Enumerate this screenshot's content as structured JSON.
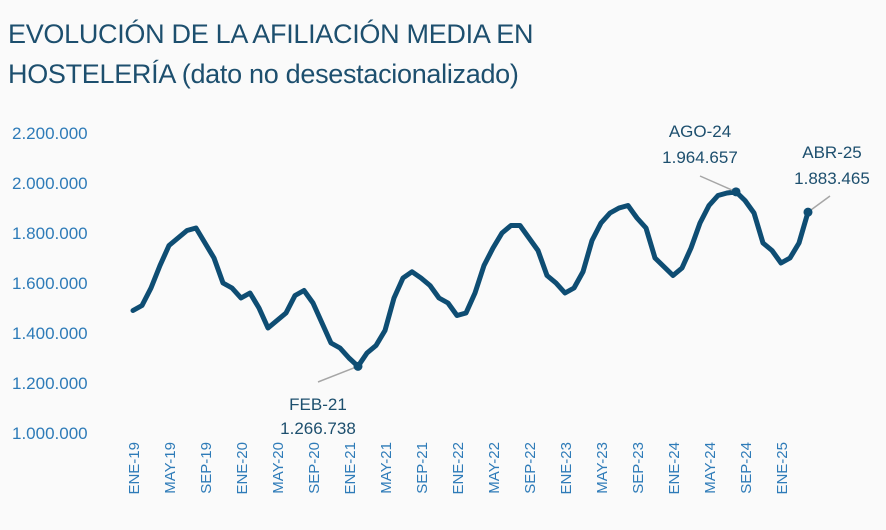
{
  "chart_data": {
    "type": "line",
    "title_line1": "EVOLUCIÓN DE LA AFILIACIÓN  MEDIA EN",
    "title_line2": "HOSTELERÍA (dato no desestacionalizado)",
    "xlabel": "",
    "ylabel": "",
    "ylim": [
      1000000,
      2200000
    ],
    "y_ticks": [
      "2.200.000",
      "2.000.000",
      "1.800.000",
      "1.600.000",
      "1.400.000",
      "1.200.000",
      "1.000.000"
    ],
    "x_tick_labels": [
      "ENE-19",
      "MAY-19",
      "SEP-19",
      "ENE-20",
      "MAY-20",
      "SEP-20",
      "ENE-21",
      "MAY-21",
      "SEP-21",
      "ENE-22",
      "MAY-22",
      "SEP-22",
      "ENE-23",
      "MAY-23",
      "SEP-23",
      "ENE-24",
      "MAY-24",
      "SEP-24",
      "ENE-25"
    ],
    "grid": false,
    "line_color": "#0e4d73",
    "axis_label_color": "#2e7bb8",
    "series": [
      {
        "start": "ENE-19",
        "frequency": "monthly",
        "values": [
          1490000,
          1510000,
          1580000,
          1670000,
          1750000,
          1780000,
          1810000,
          1820000,
          1760000,
          1700000,
          1600000,
          1580000,
          1540000,
          1560000,
          1500000,
          1420000,
          1450000,
          1480000,
          1550000,
          1570000,
          1520000,
          1440000,
          1360000,
          1340000,
          1300000,
          1266738,
          1320000,
          1350000,
          1410000,
          1540000,
          1620000,
          1645000,
          1620000,
          1590000,
          1540000,
          1520000,
          1470000,
          1480000,
          1560000,
          1670000,
          1740000,
          1800000,
          1830000,
          1830000,
          1780000,
          1730000,
          1630000,
          1600000,
          1560000,
          1580000,
          1645000,
          1770000,
          1840000,
          1880000,
          1900000,
          1910000,
          1860000,
          1820000,
          1700000,
          1665000,
          1630000,
          1660000,
          1740000,
          1840000,
          1910000,
          1950000,
          1960000,
          1964657,
          1930000,
          1880000,
          1760000,
          1730000,
          1680000,
          1700000,
          1760000,
          1883465
        ]
      }
    ],
    "annotations": [
      {
        "label": "FEB-21",
        "value": "1.266.738",
        "index": 25
      },
      {
        "label": "AGO-24",
        "value": "1.964.657",
        "index": 67
      },
      {
        "label": "ABR-25",
        "value": "1.883.465",
        "index": 75
      }
    ]
  }
}
